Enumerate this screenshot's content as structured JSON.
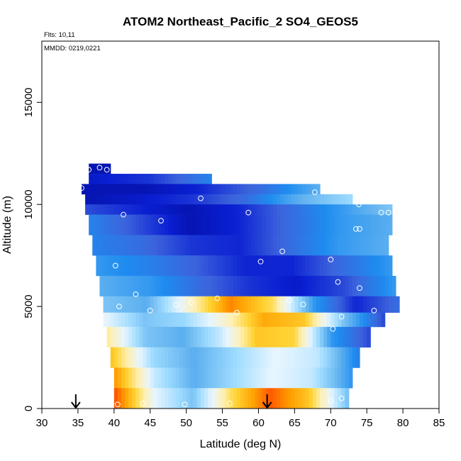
{
  "chart_data": {
    "type": "heatmap",
    "title": "ATOM2 Northeast_Pacific_2 SO4_GEOS5",
    "flights_label": "Flts: 10,11",
    "mmdd_label": "MMDD: 0219,0221",
    "xlabel": "Latitude (deg N)",
    "ylabel": "Altitude (m)",
    "xlim": [
      30,
      85
    ],
    "ylim": [
      0,
      18000
    ],
    "xticks": [
      30,
      35,
      40,
      45,
      50,
      55,
      60,
      65,
      70,
      75,
      80,
      85
    ],
    "yticks": [
      0,
      5000,
      10000,
      15000
    ],
    "grid": false,
    "colormap": [
      "#000a8c",
      "#0a1ed2",
      "#3c64dc",
      "#1e8cf0",
      "#64b4f0",
      "#a0dcff",
      "#e6f5ff",
      "#fff0b4",
      "#ffd232",
      "#ffa000",
      "#ff5000",
      "#dc0000"
    ],
    "layers": [
      {
        "alt_range": [
          11500,
          12000
        ],
        "lat_range": [
          36.5,
          39.5
        ],
        "values": [
          0.05,
          0.05,
          0.05
        ]
      },
      {
        "alt_range": [
          11000,
          11500
        ],
        "lat_range": [
          36.5,
          53.5
        ],
        "values": [
          0.08,
          0.12,
          0.25
        ]
      },
      {
        "alt_range": [
          10500,
          11000
        ],
        "lat_range": [
          35.5,
          68.5
        ],
        "values": [
          0.05,
          0.05,
          0.1,
          0.2,
          0.35
        ]
      },
      {
        "alt_range": [
          10000,
          10500
        ],
        "lat_range": [
          36.0,
          73.0
        ],
        "values": [
          0.05,
          0.08,
          0.12,
          0.2,
          0.35,
          0.45
        ]
      },
      {
        "alt_range": [
          9500,
          10000
        ],
        "lat_range": [
          36.0,
          78.5
        ],
        "values": [
          0.15,
          0.1,
          0.05,
          0.1,
          0.2,
          0.3,
          0.4
        ]
      },
      {
        "alt_range": [
          8500,
          9500
        ],
        "lat_range": [
          36.5,
          78.5
        ],
        "values": [
          0.25,
          0.15,
          0.05,
          0.1,
          0.2,
          0.3,
          0.35
        ]
      },
      {
        "alt_range": [
          7500,
          8500
        ],
        "lat_range": [
          37.0,
          78.0
        ],
        "values": [
          0.25,
          0.2,
          0.12,
          0.1,
          0.2,
          0.3,
          0.35
        ]
      },
      {
        "alt_range": [
          6500,
          7500
        ],
        "lat_range": [
          37.5,
          78.5
        ],
        "values": [
          0.3,
          0.25,
          0.18,
          0.1,
          0.1,
          0.2,
          0.3
        ]
      },
      {
        "alt_range": [
          5500,
          6500
        ],
        "lat_range": [
          38.0,
          79.0
        ],
        "values": [
          0.35,
          0.3,
          0.2,
          0.12,
          0.08,
          0.15,
          0.3
        ]
      },
      {
        "alt_range": [
          4700,
          5500
        ],
        "lat_range": [
          38.5,
          79.5
        ],
        "values": [
          0.4,
          0.35,
          0.6,
          0.85,
          0.7,
          0.3,
          0.1,
          0.2
        ]
      },
      {
        "alt_range": [
          4000,
          4700
        ],
        "lat_range": [
          38.5,
          77.5
        ],
        "values": [
          0.55,
          0.4,
          0.45,
          0.6,
          0.8,
          0.75,
          0.4,
          0.15
        ]
      },
      {
        "alt_range": [
          3000,
          4000
        ],
        "lat_range": [
          39.0,
          75.5
        ],
        "values": [
          0.65,
          0.4,
          0.35,
          0.5,
          0.75,
          0.72,
          0.3,
          0.15
        ]
      },
      {
        "alt_range": [
          2000,
          3000
        ],
        "lat_range": [
          39.5,
          74.0
        ],
        "values": [
          0.75,
          0.45,
          0.35,
          0.45,
          0.55,
          0.5,
          0.25
        ]
      },
      {
        "alt_range": [
          1000,
          2000
        ],
        "lat_range": [
          40.0,
          73.0
        ],
        "values": [
          0.82,
          0.5,
          0.35,
          0.45,
          0.55,
          0.5,
          0.3
        ]
      },
      {
        "alt_range": [
          0,
          1000
        ],
        "lat_range": [
          40.0,
          72.5
        ],
        "values": [
          0.9,
          0.55,
          0.4,
          0.7,
          0.9,
          0.75,
          0.4
        ]
      }
    ],
    "observations": [
      {
        "lat": 36.5,
        "alt": 11700
      },
      {
        "lat": 38.0,
        "alt": 11800
      },
      {
        "lat": 39.0,
        "alt": 11700
      },
      {
        "lat": 35.5,
        "alt": 10800
      },
      {
        "lat": 52.0,
        "alt": 10300
      },
      {
        "lat": 67.8,
        "alt": 10600
      },
      {
        "lat": 41.3,
        "alt": 9500
      },
      {
        "lat": 46.5,
        "alt": 9200
      },
      {
        "lat": 58.6,
        "alt": 9600
      },
      {
        "lat": 73.9,
        "alt": 10000
      },
      {
        "lat": 77.0,
        "alt": 9600
      },
      {
        "lat": 78.0,
        "alt": 9600
      },
      {
        "lat": 73.5,
        "alt": 8800
      },
      {
        "lat": 74.0,
        "alt": 8800
      },
      {
        "lat": 63.3,
        "alt": 7700
      },
      {
        "lat": 60.3,
        "alt": 7200
      },
      {
        "lat": 70.0,
        "alt": 7300
      },
      {
        "lat": 40.2,
        "alt": 7000
      },
      {
        "lat": 71.0,
        "alt": 6200
      },
      {
        "lat": 74.0,
        "alt": 5900
      },
      {
        "lat": 79.8,
        "alt": 5900
      },
      {
        "lat": 43.0,
        "alt": 5600
      },
      {
        "lat": 54.3,
        "alt": 5400
      },
      {
        "lat": 64.3,
        "alt": 5300
      },
      {
        "lat": 48.6,
        "alt": 5100
      },
      {
        "lat": 50.7,
        "alt": 5200
      },
      {
        "lat": 66.2,
        "alt": 5100
      },
      {
        "lat": 40.7,
        "alt": 5000
      },
      {
        "lat": 45.0,
        "alt": 4800
      },
      {
        "lat": 57.0,
        "alt": 4700
      },
      {
        "lat": 76.0,
        "alt": 4800
      },
      {
        "lat": 71.5,
        "alt": 4500
      },
      {
        "lat": 70.3,
        "alt": 3900
      },
      {
        "lat": 70.0,
        "alt": 400
      },
      {
        "lat": 71.5,
        "alt": 500
      },
      {
        "lat": 40.5,
        "alt": 200
      },
      {
        "lat": 44.0,
        "alt": 250
      },
      {
        "lat": 49.8,
        "alt": 200
      },
      {
        "lat": 56.0,
        "alt": 250
      }
    ],
    "arrows_lat": [
      34.7,
      61.2
    ]
  }
}
